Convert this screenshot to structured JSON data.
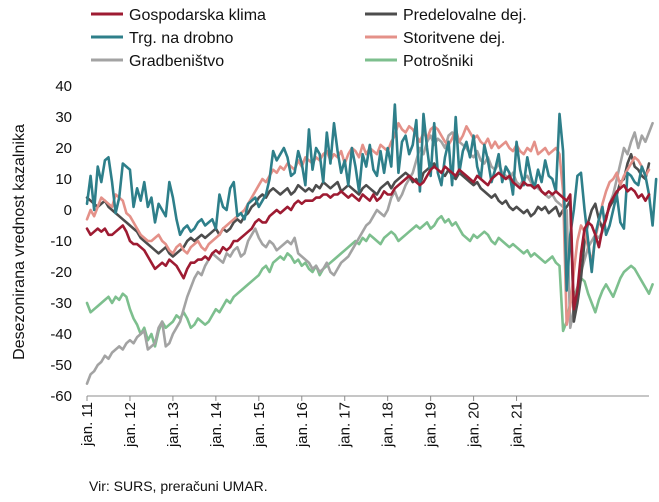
{
  "source_note": "Vir: SURS, preračuni UMAR.",
  "chart_data": {
    "type": "line",
    "title": "",
    "ylabel": "Desezonirana vrednost kazalnika",
    "xlabel": "",
    "ylim": [
      -60,
      40
    ],
    "yticks": [
      40,
      30,
      20,
      10,
      0,
      -10,
      -20,
      -30,
      -40,
      -50,
      -60
    ],
    "x_start": "jan. 11",
    "x_end": "dec. 21",
    "x_tick_labels": [
      "jan. 11",
      "jan. 12",
      "jan. 13",
      "jan. 14",
      "jan. 15",
      "jan. 16",
      "jan. 17",
      "jan. 18",
      "jan. 19",
      "jan. 20",
      "jan. 21"
    ],
    "grid": false,
    "legend_position": "top",
    "series": [
      {
        "name": "Gospodarska klima",
        "color": "#9e1b32",
        "width": 2.6,
        "values": [
          -6,
          -8,
          -7,
          -6,
          -7,
          -6,
          -8,
          -8,
          -7,
          -6,
          -5,
          -7,
          -10,
          -11,
          -11,
          -12,
          -13,
          -15,
          -17,
          -19,
          -18,
          -17,
          -18,
          -16,
          -17,
          -18,
          -20,
          -22,
          -19,
          -17,
          -17,
          -16,
          -16,
          -15,
          -16,
          -14,
          -13,
          -14,
          -12,
          -13,
          -12,
          -10,
          -10,
          -9,
          -8,
          -7,
          -6,
          -4,
          -3,
          -4,
          -4,
          -2,
          -1,
          0,
          -1,
          0,
          1,
          0,
          2,
          3,
          2,
          3,
          3,
          3,
          4,
          4,
          5,
          5,
          4,
          5,
          5,
          6,
          5,
          4,
          5,
          4,
          3,
          5,
          4,
          3,
          5,
          3,
          4,
          6,
          5,
          5,
          7,
          8,
          9,
          10,
          11,
          10,
          9,
          8,
          9,
          11,
          13,
          14,
          13,
          12,
          14,
          13,
          12,
          11,
          13,
          12,
          11,
          10,
          9,
          11,
          10,
          9,
          8,
          10,
          11,
          12,
          11,
          10,
          11,
          9,
          8,
          7,
          9,
          8,
          8,
          7,
          8,
          6,
          5,
          6,
          5,
          6,
          5,
          4,
          3,
          5,
          -32,
          -26,
          -14,
          -6,
          -4,
          -5,
          -8,
          -12,
          -6,
          -3,
          2,
          4,
          6,
          7,
          8,
          6,
          7,
          6,
          4,
          5,
          3,
          5
        ]
      },
      {
        "name": "Predelovalne dej.",
        "color": "#4d4d4d",
        "width": 2.6,
        "values": [
          4,
          3,
          2,
          1,
          2,
          3,
          1,
          0,
          -1,
          -2,
          -3,
          -4,
          -5,
          -6,
          -7,
          -9,
          -10,
          -11,
          -12,
          -13,
          -14,
          -13,
          -12,
          -14,
          -15,
          -14,
          -13,
          -12,
          -10,
          -9,
          -10,
          -9,
          -8,
          -9,
          -8,
          -7,
          -6,
          -8,
          -6,
          -7,
          -6,
          -4,
          -3,
          -4,
          -2,
          -1,
          1,
          2,
          4,
          5,
          4,
          6,
          7,
          6,
          5,
          6,
          7,
          5,
          6,
          8,
          7,
          6,
          7,
          6,
          8,
          7,
          9,
          8,
          7,
          8,
          9,
          6,
          7,
          8,
          7,
          6,
          5,
          7,
          8,
          7,
          6,
          5,
          7,
          8,
          9,
          7,
          9,
          10,
          11,
          12,
          11,
          9,
          10,
          8,
          12,
          13,
          14,
          15,
          13,
          12,
          11,
          13,
          11,
          10,
          12,
          11,
          10,
          9,
          8,
          9,
          7,
          6,
          5,
          4,
          5,
          3,
          2,
          3,
          1,
          0,
          1,
          0,
          -1,
          0,
          -2,
          -1,
          1,
          0,
          1,
          -1,
          0,
          1,
          -2,
          0,
          1,
          3,
          -36,
          -30,
          -22,
          -10,
          -4,
          0,
          2,
          -3,
          -6,
          -2,
          1,
          3,
          5,
          9,
          10,
          15,
          18,
          14,
          13,
          11,
          10,
          15
        ]
      },
      {
        "name": "Trg. na drobno",
        "color": "#2e7f8a",
        "width": 2.6,
        "values": [
          2,
          11,
          0,
          14,
          9,
          16,
          17,
          9,
          -1,
          4,
          15,
          14,
          13,
          1,
          7,
          3,
          9,
          1,
          4,
          -4,
          2,
          0,
          -2,
          9,
          4,
          -3,
          -8,
          -6,
          -5,
          -7,
          -6,
          -4,
          -3,
          -5,
          -4,
          -3,
          -6,
          5,
          1,
          0,
          7,
          9,
          -2,
          -1,
          -3,
          2,
          3,
          4,
          1,
          3,
          5,
          10,
          19,
          16,
          18,
          20,
          17,
          11,
          12,
          19,
          15,
          8,
          26,
          13,
          20,
          18,
          9,
          25,
          15,
          28,
          19,
          12,
          16,
          8,
          20,
          14,
          6,
          18,
          14,
          21,
          13,
          11,
          19,
          12,
          20,
          14,
          34,
          12,
          22,
          24,
          18,
          21,
          29,
          6,
          31,
          20,
          11,
          28,
          12,
          8,
          17,
          22,
          8,
          30,
          12,
          19,
          22,
          17,
          24,
          14,
          10,
          21,
          16,
          9,
          13,
          18,
          9,
          14,
          12,
          5,
          22,
          13,
          8,
          17,
          11,
          7,
          13,
          9,
          16,
          11,
          10,
          6,
          31,
          19,
          -26,
          -8,
          0,
          11,
          12,
          0,
          -10,
          -20,
          -8,
          -3,
          1,
          -8,
          -5,
          0,
          5,
          -4,
          -6,
          12,
          11,
          9,
          8,
          14,
          11,
          5,
          -5,
          10
        ]
      },
      {
        "name": "Storitvene dej.",
        "color": "#e49189",
        "width": 2.6,
        "values": [
          -3,
          0,
          -2,
          1,
          4,
          3,
          2,
          1,
          5,
          4,
          3,
          -1,
          -2,
          -4,
          -6,
          -8,
          -9,
          -10,
          -10,
          -9,
          -8,
          -10,
          -11,
          -13,
          -14,
          -12,
          -11,
          -13,
          -14,
          -12,
          -11,
          -10,
          -12,
          -13,
          -11,
          -10,
          -9,
          -8,
          -6,
          -5,
          -4,
          -3,
          -2,
          -1,
          0,
          2,
          4,
          6,
          8,
          10,
          9,
          11,
          13,
          12,
          14,
          13,
          15,
          14,
          13,
          16,
          14,
          17,
          16,
          15,
          17,
          16,
          18,
          19,
          16,
          18,
          17,
          19,
          15,
          18,
          20,
          19,
          17,
          21,
          18,
          20,
          19,
          18,
          21,
          20,
          19,
          22,
          24,
          28,
          26,
          25,
          27,
          26,
          24,
          22,
          25,
          23,
          26,
          27,
          26,
          24,
          22,
          21,
          23,
          26,
          22,
          24,
          27,
          25,
          23,
          24,
          22,
          21,
          23,
          20,
          22,
          20,
          21,
          22,
          20,
          19,
          21,
          19,
          18,
          20,
          19,
          22,
          18,
          19,
          20,
          18,
          19,
          20,
          18,
          6,
          -37,
          -31,
          -20,
          -10,
          -5,
          -7,
          -12,
          -17,
          -9,
          -4,
          2,
          6,
          9,
          10,
          12,
          8,
          11,
          13,
          15,
          17,
          16,
          14,
          11,
          13
        ]
      },
      {
        "name": "Gradbeništvo",
        "color": "#a3a3a3",
        "width": 2.6,
        "values": [
          -56,
          -53,
          -52,
          -50,
          -49,
          -47,
          -48,
          -46,
          -45,
          -44,
          -45,
          -43,
          -42,
          -43,
          -41,
          -40,
          -39,
          -45,
          -44,
          -43,
          -38,
          -36,
          -44,
          -43,
          -40,
          -38,
          -36,
          -32,
          -28,
          -25,
          -22,
          -20,
          -21,
          -18,
          -16,
          -14,
          -15,
          -16,
          -17,
          -14,
          -15,
          -13,
          -12,
          -15,
          -14,
          -10,
          -8,
          -6,
          -9,
          -11,
          -12,
          -10,
          -11,
          -13,
          -12,
          -11,
          -10,
          -11,
          -9,
          -14,
          -15,
          -16,
          -17,
          -19,
          -18,
          -20,
          -19,
          -17,
          -20,
          -21,
          -19,
          -17,
          -16,
          -15,
          -13,
          -11,
          -9,
          -7,
          -5,
          -4,
          -2,
          0,
          -1,
          -2,
          0,
          4,
          6,
          3,
          5,
          8,
          10,
          12,
          16,
          20,
          18,
          22,
          24,
          21,
          23,
          22,
          20,
          24,
          25,
          23,
          22,
          21,
          20,
          18,
          17,
          19,
          16,
          15,
          17,
          14,
          13,
          15,
          12,
          11,
          10,
          12,
          9,
          8,
          10,
          11,
          9,
          8,
          7,
          6,
          5,
          4,
          5,
          3,
          2,
          1,
          0,
          -38,
          -32,
          -25,
          -20,
          -16,
          -12,
          -10,
          -8,
          -9,
          -7,
          -3,
          2,
          5,
          10,
          15,
          20,
          18,
          22,
          25,
          20,
          24,
          22,
          25,
          28
        ]
      },
      {
        "name": "Potrošniki",
        "color": "#7dbf8e",
        "width": 2.6,
        "values": [
          -30,
          -33,
          -32,
          -31,
          -30,
          -29,
          -28,
          -30,
          -28,
          -29,
          -27,
          -28,
          -32,
          -35,
          -37,
          -40,
          -38,
          -42,
          -40,
          -44,
          -39,
          -36,
          -38,
          -37,
          -36,
          -34,
          -35,
          -33,
          -35,
          -38,
          -37,
          -35,
          -36,
          -37,
          -36,
          -34,
          -32,
          -33,
          -31,
          -29,
          -30,
          -28,
          -27,
          -26,
          -25,
          -24,
          -23,
          -22,
          -21,
          -19,
          -18,
          -20,
          -17,
          -16,
          -15,
          -16,
          -14,
          -15,
          -17,
          -16,
          -18,
          -17,
          -19,
          -20,
          -18,
          -21,
          -19,
          -18,
          -17,
          -16,
          -15,
          -14,
          -13,
          -12,
          -11,
          -10,
          -11,
          -9,
          -10,
          -8,
          -9,
          -10,
          -11,
          -9,
          -8,
          -7,
          -8,
          -10,
          -9,
          -8,
          -7,
          -6,
          -5,
          -6,
          -5,
          -4,
          -6,
          -5,
          -3,
          -2,
          -4,
          -3,
          -5,
          -4,
          -6,
          -8,
          -9,
          -10,
          -8,
          -9,
          -8,
          -7,
          -8,
          -10,
          -11,
          -9,
          -10,
          -11,
          -12,
          -11,
          -12,
          -13,
          -14,
          -13,
          -15,
          -14,
          -15,
          -16,
          -17,
          -16,
          -15,
          -17,
          -18,
          -39,
          -36,
          -30,
          -28,
          -25,
          -22,
          -23,
          -27,
          -30,
          -33,
          -29,
          -26,
          -24,
          -26,
          -28,
          -25,
          -22,
          -20,
          -19,
          -18,
          -19,
          -21,
          -23,
          -25,
          -27,
          -24
        ]
      }
    ]
  }
}
